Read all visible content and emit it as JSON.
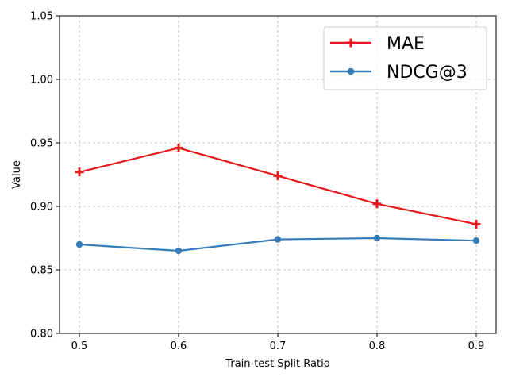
{
  "chart_data": {
    "type": "line",
    "title": "",
    "xlabel": "Train-test Split Ratio",
    "ylabel": "Value",
    "x": [
      0.5,
      0.6,
      0.7,
      0.8,
      0.9
    ],
    "x_tick_labels": [
      "0.5",
      "0.6",
      "0.7",
      "0.8",
      "0.9"
    ],
    "xlim": [
      0.48,
      0.92
    ],
    "ylim": [
      0.8,
      1.05
    ],
    "y_ticks": [
      0.8,
      0.85,
      0.9,
      0.95,
      1.0,
      1.05
    ],
    "y_tick_labels": [
      "0.80",
      "0.85",
      "0.90",
      "0.95",
      "1.00",
      "1.05"
    ],
    "grid": true,
    "legend_position": "top-right",
    "series": [
      {
        "name": "MAE",
        "values": [
          0.927,
          0.946,
          0.924,
          0.902,
          0.886
        ],
        "color": "#e41a1c",
        "marker": "plus"
      },
      {
        "name": "NDCG@3",
        "values": [
          0.87,
          0.865,
          0.874,
          0.875,
          0.873
        ],
        "color": "#377eb8",
        "marker": "circle"
      }
    ]
  }
}
